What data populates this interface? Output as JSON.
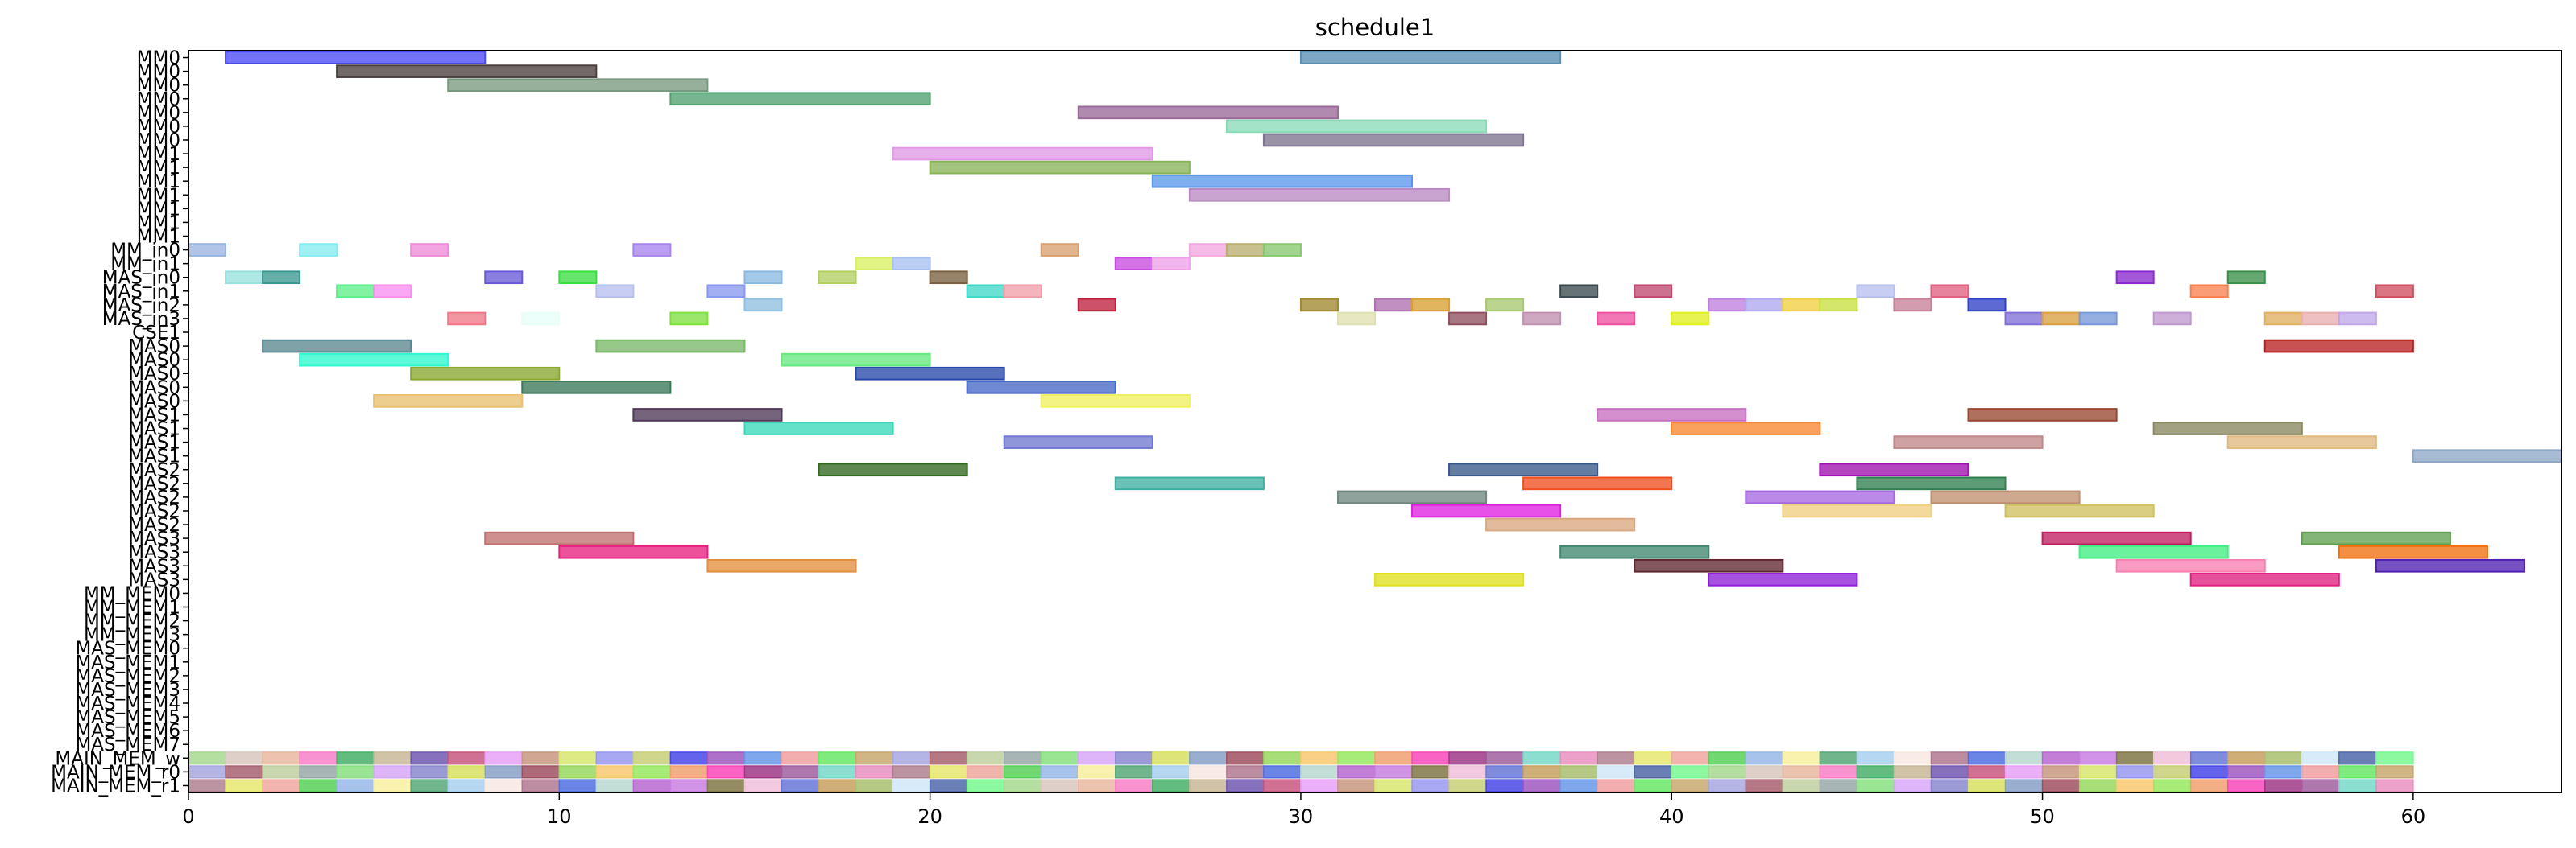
{
  "chart_data": {
    "type": "gantt",
    "title": "schedule1",
    "xlabel": "",
    "ylabel": "",
    "xlim": [
      0,
      64
    ],
    "x_ticks": [
      0,
      10,
      20,
      30,
      40,
      50,
      60
    ],
    "x_tick_labels": [
      "0",
      "10",
      "20",
      "30",
      "40",
      "50",
      "60"
    ],
    "grid": false,
    "rows": [
      "MM0",
      "MM0",
      "MM0",
      "MM0",
      "MM0",
      "MM0",
      "MM0",
      "MM1",
      "MM1",
      "MM1",
      "MM1",
      "MM1",
      "MM1",
      "MM1",
      "MM_in0",
      "MM_in1",
      "MAS_in0",
      "MAS_in1",
      "MAS_in2",
      "MAS_in3",
      "CSE1",
      "MAS0",
      "MAS0",
      "MAS0",
      "MAS0",
      "MAS0",
      "MAS1",
      "MAS1",
      "MAS1",
      "MAS1",
      "MAS2",
      "MAS2",
      "MAS2",
      "MAS2",
      "MAS2",
      "MAS3",
      "MAS3",
      "MAS3",
      "MAS3",
      "MM_MEM0",
      "MM_MEM1",
      "MM_MEM2",
      "MM_MEM3",
      "MAS_MEM0",
      "MAS_MEM1",
      "MAS_MEM2",
      "MAS_MEM3",
      "MAS_MEM4",
      "MAS_MEM5",
      "MAS_MEM6",
      "MAS_MEM7",
      "MAIN_MEM_w",
      "MAIN_MEM_r0",
      "MAIN_MEM_r1"
    ],
    "tasks": [
      {
        "row": 0,
        "start": 1,
        "end": 8,
        "color": "#4b4bf5"
      },
      {
        "row": 0,
        "start": 30,
        "end": 37,
        "color": "#5a90b5"
      },
      {
        "row": 1,
        "start": 4,
        "end": 11,
        "color": "#4a403e"
      },
      {
        "row": 2,
        "start": 7,
        "end": 14,
        "color": "#789a80"
      },
      {
        "row": 3,
        "start": 13,
        "end": 20,
        "color": "#50a070"
      },
      {
        "row": 4,
        "start": 24,
        "end": 31,
        "color": "#9a6a98"
      },
      {
        "row": 5,
        "start": 28,
        "end": 35,
        "color": "#8adbb8"
      },
      {
        "row": 6,
        "start": 29,
        "end": 36,
        "color": "#7e7490"
      },
      {
        "row": 7,
        "start": 19,
        "end": 26,
        "color": "#e29ae6"
      },
      {
        "row": 8,
        "start": 20,
        "end": 27,
        "color": "#88b458"
      },
      {
        "row": 9,
        "start": 26,
        "end": 33,
        "color": "#5a96ec"
      },
      {
        "row": 10,
        "start": 27,
        "end": 34,
        "color": "#bb8ac4"
      },
      {
        "row": 14,
        "start": 0,
        "end": 1,
        "color": "#98b4e0"
      },
      {
        "row": 14,
        "start": 3,
        "end": 4,
        "color": "#86ecf0"
      },
      {
        "row": 14,
        "start": 6,
        "end": 7,
        "color": "#ee8ad8"
      },
      {
        "row": 14,
        "start": 12,
        "end": 13,
        "color": "#a884ee"
      },
      {
        "row": 14,
        "start": 23,
        "end": 24,
        "color": "#d8a070"
      },
      {
        "row": 14,
        "start": 27,
        "end": 28,
        "color": "#f4a8e0"
      },
      {
        "row": 14,
        "start": 28,
        "end": 29,
        "color": "#b8b070"
      },
      {
        "row": 14,
        "start": 29,
        "end": 30,
        "color": "#88c870"
      },
      {
        "row": 15,
        "start": 18,
        "end": 19,
        "color": "#d8f060"
      },
      {
        "row": 15,
        "start": 19,
        "end": 20,
        "color": "#a8c0f0"
      },
      {
        "row": 15,
        "start": 25,
        "end": 26,
        "color": "#c84ae0"
      },
      {
        "row": 15,
        "start": 26,
        "end": 27,
        "color": "#f0a0e8"
      },
      {
        "row": 16,
        "start": 1,
        "end": 2,
        "color": "#98e0dc"
      },
      {
        "row": 16,
        "start": 2,
        "end": 3,
        "color": "#3a9890"
      },
      {
        "row": 16,
        "start": 8,
        "end": 9,
        "color": "#6a5ad8"
      },
      {
        "row": 16,
        "start": 10,
        "end": 11,
        "color": "#38e040"
      },
      {
        "row": 16,
        "start": 15,
        "end": 16,
        "color": "#8ab8e0"
      },
      {
        "row": 16,
        "start": 17,
        "end": 18,
        "color": "#b0d060"
      },
      {
        "row": 16,
        "start": 20,
        "end": 21,
        "color": "#7a6040"
      },
      {
        "row": 16,
        "start": 52,
        "end": 53,
        "color": "#8a2ad0"
      },
      {
        "row": 16,
        "start": 55,
        "end": 56,
        "color": "#3a9048"
      },
      {
        "row": 17,
        "start": 4,
        "end": 5,
        "color": "#5ef088"
      },
      {
        "row": 17,
        "start": 5,
        "end": 6,
        "color": "#f890f0"
      },
      {
        "row": 17,
        "start": 11,
        "end": 12,
        "color": "#b8c0f0"
      },
      {
        "row": 17,
        "start": 14,
        "end": 15,
        "color": "#8898f0"
      },
      {
        "row": 17,
        "start": 21,
        "end": 22,
        "color": "#40d8c8"
      },
      {
        "row": 17,
        "start": 22,
        "end": 23,
        "color": "#f0a0a8"
      },
      {
        "row": 17,
        "start": 37,
        "end": 38,
        "color": "#3a4a50"
      },
      {
        "row": 17,
        "start": 39,
        "end": 40,
        "color": "#c04870"
      },
      {
        "row": 17,
        "start": 45,
        "end": 46,
        "color": "#b8c0f0"
      },
      {
        "row": 17,
        "start": 47,
        "end": 48,
        "color": "#e06080"
      },
      {
        "row": 17,
        "start": 54,
        "end": 55,
        "color": "#f88050"
      },
      {
        "row": 17,
        "start": 59,
        "end": 60,
        "color": "#d05060"
      },
      {
        "row": 18,
        "start": 15,
        "end": 16,
        "color": "#90c0e0"
      },
      {
        "row": 18,
        "start": 24,
        "end": 25,
        "color": "#c02040"
      },
      {
        "row": 18,
        "start": 30,
        "end": 31,
        "color": "#a08830"
      },
      {
        "row": 18,
        "start": 32,
        "end": 33,
        "color": "#b070b0"
      },
      {
        "row": 18,
        "start": 33,
        "end": 34,
        "color": "#d8a030"
      },
      {
        "row": 18,
        "start": 35,
        "end": 36,
        "color": "#a8c870"
      },
      {
        "row": 18,
        "start": 41,
        "end": 42,
        "color": "#c080e0"
      },
      {
        "row": 18,
        "start": 42,
        "end": 43,
        "color": "#b0a8f0"
      },
      {
        "row": 18,
        "start": 43,
        "end": 44,
        "color": "#f0d040"
      },
      {
        "row": 18,
        "start": 44,
        "end": 45,
        "color": "#c8e040"
      },
      {
        "row": 18,
        "start": 46,
        "end": 47,
        "color": "#c88098"
      },
      {
        "row": 18,
        "start": 48,
        "end": 49,
        "color": "#3040c8"
      },
      {
        "row": 19,
        "start": 7,
        "end": 8,
        "color": "#f07888"
      },
      {
        "row": 19,
        "start": 9,
        "end": 10,
        "color": "#e8fff8"
      },
      {
        "row": 19,
        "start": 13,
        "end": 14,
        "color": "#80e040"
      },
      {
        "row": 19,
        "start": 31,
        "end": 32,
        "color": "#e0e0b0"
      },
      {
        "row": 19,
        "start": 34,
        "end": 35,
        "color": "#905060"
      },
      {
        "row": 19,
        "start": 36,
        "end": 37,
        "color": "#c090b0"
      },
      {
        "row": 19,
        "start": 38,
        "end": 39,
        "color": "#f050a0"
      },
      {
        "row": 19,
        "start": 40,
        "end": 41,
        "color": "#e0f020"
      },
      {
        "row": 19,
        "start": 49,
        "end": 50,
        "color": "#8070d8"
      },
      {
        "row": 19,
        "start": 50,
        "end": 51,
        "color": "#d8a040"
      },
      {
        "row": 19,
        "start": 51,
        "end": 52,
        "color": "#7898d8"
      },
      {
        "row": 19,
        "start": 53,
        "end": 54,
        "color": "#c098d0"
      },
      {
        "row": 19,
        "start": 56,
        "end": 57,
        "color": "#e0b060"
      },
      {
        "row": 19,
        "start": 57,
        "end": 58,
        "color": "#e8b0b0"
      },
      {
        "row": 19,
        "start": 58,
        "end": 59,
        "color": "#c0a8e8"
      },
      {
        "row": 21,
        "start": 2,
        "end": 6,
        "color": "#5a8890"
      },
      {
        "row": 21,
        "start": 11,
        "end": 15,
        "color": "#78b868"
      },
      {
        "row": 21,
        "start": 56,
        "end": 60,
        "color": "#b82020"
      },
      {
        "row": 22,
        "start": 3,
        "end": 7,
        "color": "#30f8d0"
      },
      {
        "row": 22,
        "start": 16,
        "end": 20,
        "color": "#68e880"
      },
      {
        "row": 23,
        "start": 6,
        "end": 10,
        "color": "#88a830"
      },
      {
        "row": 23,
        "start": 18,
        "end": 22,
        "color": "#2848a8"
      },
      {
        "row": 24,
        "start": 9,
        "end": 13,
        "color": "#3a7858"
      },
      {
        "row": 24,
        "start": 21,
        "end": 25,
        "color": "#4868c8"
      },
      {
        "row": 25,
        "start": 5,
        "end": 9,
        "color": "#e8c070"
      },
      {
        "row": 25,
        "start": 23,
        "end": 27,
        "color": "#f0f060"
      },
      {
        "row": 26,
        "start": 12,
        "end": 16,
        "color": "#503858"
      },
      {
        "row": 26,
        "start": 38,
        "end": 42,
        "color": "#c870c0"
      },
      {
        "row": 26,
        "start": 48,
        "end": 52,
        "color": "#984830"
      },
      {
        "row": 27,
        "start": 15,
        "end": 19,
        "color": "#38d8b8"
      },
      {
        "row": 27,
        "start": 40,
        "end": 44,
        "color": "#f88830"
      },
      {
        "row": 27,
        "start": 53,
        "end": 57,
        "color": "#888860"
      },
      {
        "row": 28,
        "start": 22,
        "end": 26,
        "color": "#7078d0"
      },
      {
        "row": 28,
        "start": 46,
        "end": 50,
        "color": "#c08888"
      },
      {
        "row": 28,
        "start": 55,
        "end": 59,
        "color": "#e0b880"
      },
      {
        "row": 29,
        "start": 60,
        "end": 64,
        "color": "#90a8c8"
      },
      {
        "row": 30,
        "start": 17,
        "end": 21,
        "color": "#306820"
      },
      {
        "row": 30,
        "start": 34,
        "end": 38,
        "color": "#385888"
      },
      {
        "row": 30,
        "start": 44,
        "end": 48,
        "color": "#a010b0"
      },
      {
        "row": 31,
        "start": 25,
        "end": 29,
        "color": "#40b0a0"
      },
      {
        "row": 31,
        "start": 36,
        "end": 40,
        "color": "#f05020"
      },
      {
        "row": 31,
        "start": 45,
        "end": 49,
        "color": "#308050"
      },
      {
        "row": 32,
        "start": 31,
        "end": 35,
        "color": "#708880"
      },
      {
        "row": 32,
        "start": 42,
        "end": 46,
        "color": "#a868e0"
      },
      {
        "row": 32,
        "start": 47,
        "end": 51,
        "color": "#c09070"
      },
      {
        "row": 33,
        "start": 33,
        "end": 37,
        "color": "#e020e0"
      },
      {
        "row": 33,
        "start": 43,
        "end": 47,
        "color": "#f0d080"
      },
      {
        "row": 33,
        "start": 49,
        "end": 53,
        "color": "#d0c060"
      },
      {
        "row": 34,
        "start": 35,
        "end": 39,
        "color": "#d8a880"
      },
      {
        "row": 35,
        "start": 8,
        "end": 12,
        "color": "#c07070"
      },
      {
        "row": 35,
        "start": 50,
        "end": 54,
        "color": "#c02060"
      },
      {
        "row": 35,
        "start": 57,
        "end": 61,
        "color": "#60a050"
      },
      {
        "row": 36,
        "start": 10,
        "end": 14,
        "color": "#e82080"
      },
      {
        "row": 36,
        "start": 37,
        "end": 41,
        "color": "#408870"
      },
      {
        "row": 36,
        "start": 51,
        "end": 55,
        "color": "#40f080"
      },
      {
        "row": 36,
        "start": 58,
        "end": 62,
        "color": "#f07010"
      },
      {
        "row": 37,
        "start": 14,
        "end": 18,
        "color": "#e09040"
      },
      {
        "row": 37,
        "start": 39,
        "end": 43,
        "color": "#602830"
      },
      {
        "row": 37,
        "start": 52,
        "end": 56,
        "color": "#f880b0"
      },
      {
        "row": 37,
        "start": 59,
        "end": 63,
        "color": "#5020b0"
      },
      {
        "row": 38,
        "start": 32,
        "end": 36,
        "color": "#e0e020"
      },
      {
        "row": 38,
        "start": 41,
        "end": 45,
        "color": "#9020d8"
      },
      {
        "row": 38,
        "start": 54,
        "end": 58,
        "color": "#e02080"
      }
    ],
    "main_mem_strips": {
      "rows": [
        51,
        52,
        53
      ],
      "start": 0,
      "end": 60
    },
    "strip_palette": [
      "#a8d890",
      "#f8f0a0",
      "#d8e060",
      "#c89880",
      "#807848",
      "#a060a0",
      "#c8a870",
      "#d8c8c0",
      "#58a878",
      "#88a0c8",
      "#d8e870",
      "#f0c0d8",
      "#78d8c8",
      "#a8a8e0",
      "#e8b8a0",
      "#a8d0f0",
      "#a05060",
      "#9898f0",
      "#6878d8",
      "#e890c0",
      "#a86070",
      "#f880c8",
      "#f8e8e0",
      "#98d860",
      "#c8d078",
      "#c8a060",
      "#b08090",
      "#c0d0a0",
      "#48b068",
      "#b07890",
      "#f8c870",
      "#4848e8",
      "#a8c070",
      "#e8e870",
      "#98a8a8",
      "#c8b898",
      "#5070e0",
      "#98e860",
      "#a058c0",
      "#d0e8f8",
      "#f0a8a0",
      "#88e080",
      "#7058b0",
      "#b8d8d0",
      "#f0a070",
      "#6898e8",
      "#5068a8",
      "#58d058",
      "#d8a8f8",
      "#c85880",
      "#b868d0",
      "#f848b8",
      "#f0a0a0",
      "#78f890",
      "#98b8e8",
      "#8888d0",
      "#e8a0f8",
      "#c880e0",
      "#a03888",
      "#68e868"
    ]
  }
}
